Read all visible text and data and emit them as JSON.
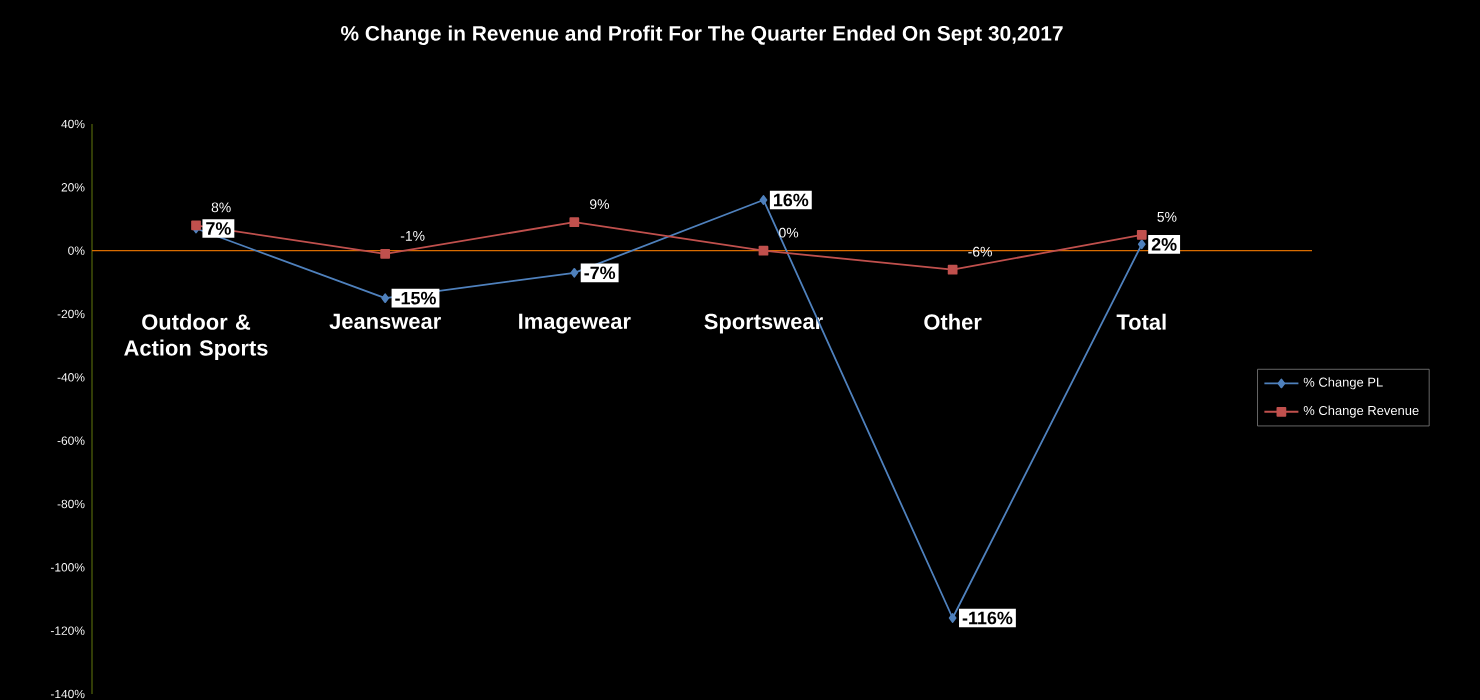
{
  "chart_data": {
    "type": "line",
    "title": "% Change in Revenue and Profit For The Quarter Ended On Sept 30,2017",
    "categories": [
      "Outdoor & Action Sports",
      "Jeanswear",
      "Imagewear",
      "Sportswear",
      "Other",
      "Total"
    ],
    "series": [
      {
        "name": "% Change PL",
        "color": "#4f81bd",
        "marker": "diamond",
        "values": [
          7,
          -15,
          -7,
          16,
          -116,
          2
        ],
        "value_labels": [
          "7%",
          "-15%",
          "-7%",
          "16%",
          "-116%",
          "2%"
        ]
      },
      {
        "name": "% Change Revenue",
        "color": "#c0504d",
        "marker": "square",
        "values": [
          8,
          -1,
          9,
          0,
          -6,
          5
        ],
        "value_labels": [
          "8%",
          "-1%",
          "9%",
          "0%",
          "-6%",
          "5%"
        ]
      }
    ],
    "ylim": [
      -140,
      40
    ],
    "yticks": [
      {
        "value": 40,
        "label": "40%"
      },
      {
        "value": 20,
        "label": "20%"
      },
      {
        "value": 0,
        "label": "0%"
      },
      {
        "value": -20,
        "label": "-20%"
      },
      {
        "value": -40,
        "label": "-40%"
      },
      {
        "value": -60,
        "label": "-60%"
      },
      {
        "value": -80,
        "label": "-80%"
      },
      {
        "value": -100,
        "label": "-100%"
      },
      {
        "value": -120,
        "label": "-120%"
      },
      {
        "value": -140,
        "label": "-140%"
      }
    ],
    "ref_lines": [
      {
        "axis": "y",
        "value": 0,
        "color": "#d96c00"
      }
    ],
    "grid": false,
    "legend": "right"
  }
}
